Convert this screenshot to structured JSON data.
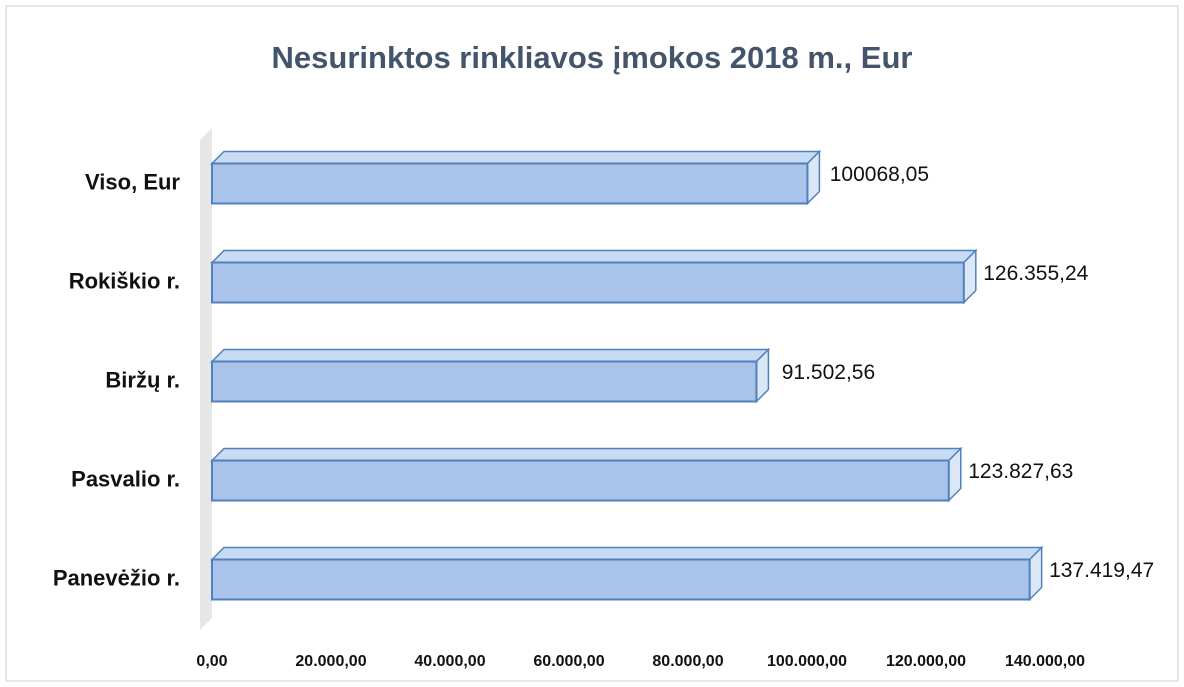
{
  "chart_data": {
    "type": "bar",
    "orientation": "horizontal",
    "title": "Nesurinktos rinkliavos įmokos 2018 m., Eur",
    "categories": [
      "Viso, Eur",
      "Rokiškio r.",
      "Biržų r.",
      "Pasvalio r.",
      "Panevėžio r."
    ],
    "values": [
      100068.05,
      126355.24,
      91502.56,
      123827.63,
      137419.47
    ],
    "value_labels": [
      "100068,05",
      "126.355,24",
      "91.502,56",
      "123.827,63",
      "137.419,47"
    ],
    "color": "#a9c3ea",
    "xlim": [
      0,
      140000
    ],
    "xticks": [
      {
        "value": 0,
        "label": "0,00"
      },
      {
        "value": 20000,
        "label": "20.000,00"
      },
      {
        "value": 40000,
        "label": "40.000,00"
      },
      {
        "value": 60000,
        "label": "60.000,00"
      },
      {
        "value": 80000,
        "label": "80.000,00"
      },
      {
        "value": 100000,
        "label": "100.000,00"
      },
      {
        "value": 120000,
        "label": "120.000,00"
      },
      {
        "value": 140000,
        "label": "140.000,00"
      }
    ],
    "grid": false
  }
}
